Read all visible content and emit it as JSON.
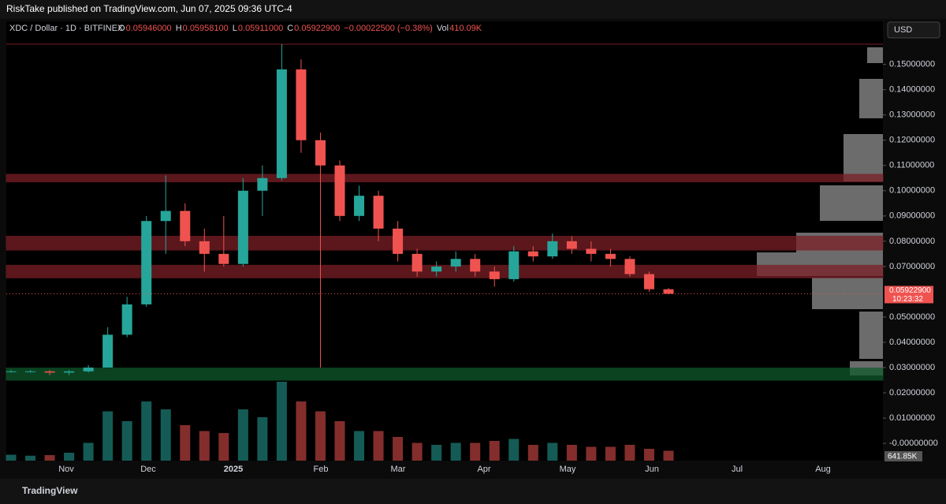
{
  "header": {
    "publisher": "RiskTake published on TradingView.com, Jun 07, 2025 09:36 UTC-4"
  },
  "legend": {
    "symbol": "XDC / Dollar · 1D · BITFINEX",
    "o_label": "O",
    "o": "0.05946000",
    "h_label": "H",
    "h": "0.05958100",
    "l_label": "L",
    "l": "0.05911000",
    "c_label": "C",
    "c": "0.05922900",
    "change": "−0.00022500 (−0.38%)",
    "vol_label": "Vol",
    "vol": "410.09K"
  },
  "currency": "USD",
  "price_tag": {
    "price": "0.05922900",
    "countdown": "10:23:32"
  },
  "volume_tag": "641.85K",
  "footer": "TradingView",
  "chart_data": {
    "type": "candlestick",
    "time_labels": [
      "Nov",
      "Dec",
      "2025",
      "Feb",
      "Mar",
      "Apr",
      "May",
      "Jun",
      "Jul",
      "Aug"
    ],
    "ylim": [
      -0.0009,
      0.158
    ],
    "yticks": [
      {
        "value": 0.15,
        "label": "0.15000000"
      },
      {
        "value": 0.14,
        "label": "0.14000000"
      },
      {
        "value": 0.13,
        "label": "0.13000000"
      },
      {
        "value": 0.12,
        "label": "0.12000000"
      },
      {
        "value": 0.11,
        "label": "0.11000000"
      },
      {
        "value": 0.1,
        "label": "0.10000000"
      },
      {
        "value": 0.09,
        "label": "0.09000000"
      },
      {
        "value": 0.08,
        "label": "0.08000000"
      },
      {
        "value": 0.07,
        "label": "0.07000000"
      },
      {
        "value": 0.05,
        "label": "0.05000000"
      },
      {
        "value": 0.04,
        "label": "0.04000000"
      },
      {
        "value": 0.03,
        "label": "0.03000000"
      },
      {
        "value": 0.02,
        "label": "0.02000000"
      },
      {
        "value": 0.01,
        "label": "0.01000000"
      },
      {
        "value": 0,
        "label": "-0.00000000"
      }
    ],
    "open": [
      0.0285,
      0.0285,
      0.0285,
      0.028,
      0.0285,
      0.03,
      0.043,
      0.055,
      0.088,
      0.092,
      0.08,
      0.075,
      0.071,
      0.1,
      0.105,
      0.148,
      0.12,
      0.11,
      0.09,
      0.098,
      0.085,
      0.075,
      0.068,
      0.07,
      0.073,
      0.068,
      0.065,
      0.076,
      0.074,
      0.08,
      0.077,
      0.075,
      0.073,
      0.067,
      0.061
    ],
    "high": [
      0.029,
      0.029,
      0.029,
      0.029,
      0.031,
      0.046,
      0.058,
      0.09,
      0.106,
      0.095,
      0.085,
      0.09,
      0.105,
      0.11,
      0.158,
      0.152,
      0.123,
      0.112,
      0.102,
      0.1,
      0.088,
      0.077,
      0.072,
      0.076,
      0.075,
      0.07,
      0.078,
      0.078,
      0.083,
      0.082,
      0.08,
      0.077,
      0.074,
      0.068,
      0.0615
    ],
    "low": [
      0.028,
      0.028,
      0.027,
      0.027,
      0.028,
      0.03,
      0.042,
      0.054,
      0.075,
      0.078,
      0.068,
      0.07,
      0.07,
      0.09,
      0.104,
      0.115,
      0.03,
      0.088,
      0.088,
      0.08,
      0.072,
      0.066,
      0.066,
      0.068,
      0.066,
      0.062,
      0.064,
      0.072,
      0.073,
      0.075,
      0.072,
      0.07,
      0.066,
      0.06,
      0.059
    ],
    "close": [
      0.0285,
      0.0285,
      0.028,
      0.0285,
      0.03,
      0.043,
      0.055,
      0.088,
      0.092,
      0.08,
      0.075,
      0.071,
      0.1,
      0.105,
      0.148,
      0.12,
      0.11,
      0.09,
      0.098,
      0.085,
      0.075,
      0.068,
      0.07,
      0.073,
      0.068,
      0.065,
      0.076,
      0.074,
      0.08,
      0.077,
      0.075,
      0.073,
      0.067,
      0.061,
      0.0592
    ],
    "volume": [
      300,
      250,
      280,
      400,
      900,
      2500,
      2000,
      3000,
      2600,
      1800,
      1500,
      1400,
      2600,
      2200,
      4000,
      3000,
      2500,
      2000,
      1500,
      1500,
      1200,
      900,
      800,
      900,
      900,
      1000,
      1100,
      800,
      900,
      800,
      700,
      700,
      800,
      600,
      500
    ],
    "zones": [
      {
        "low": 0.1035,
        "high": 0.1065,
        "color": "#7a1f26"
      },
      {
        "low": 0.0765,
        "high": 0.082,
        "color": "#7a1f26"
      },
      {
        "low": 0.0655,
        "high": 0.0705,
        "color": "#7a1f26"
      },
      {
        "low": 0.025,
        "high": 0.0298,
        "color": "#0f5a2c"
      }
    ],
    "up_color": "#26a69a",
    "down_color": "#ef5350"
  }
}
